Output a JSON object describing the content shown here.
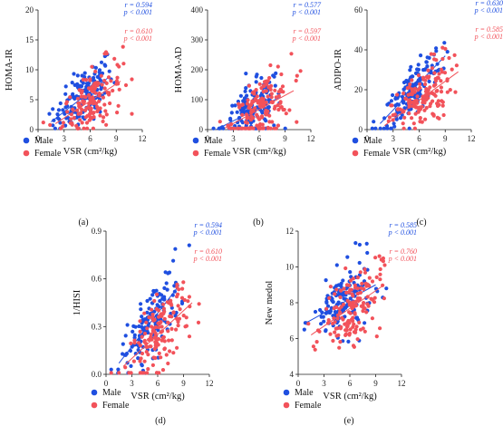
{
  "colors": {
    "male": "#1f4fe0",
    "female": "#f2525a"
  },
  "chart_data": [
    {
      "type": "scatter",
      "panel_label": "(a)",
      "xlabel": "VSR (cm²/kg)",
      "ylabel": "HOMA-IR",
      "xlim": [
        0,
        12
      ],
      "ylim": [
        0,
        20
      ],
      "xticks": [
        "0",
        "3",
        "6",
        "9",
        "12"
      ],
      "yticks": [
        "0",
        "5",
        "10",
        "15",
        "20"
      ],
      "series": [
        {
          "name": "Male",
          "r": "r = 0.594",
          "p": "p < 0.001",
          "trend": [
            [
              1.5,
              1.3
            ],
            [
              8.0,
              8.6
            ]
          ]
        },
        {
          "name": "Female",
          "r": "r = 0.610",
          "p": "p < 0.001",
          "trend": [
            [
              2.0,
              1.0
            ],
            [
              9.5,
              8.1
            ]
          ]
        }
      ]
    },
    {
      "type": "scatter",
      "panel_label": "(b)",
      "xlabel": "VSR (cm²/kg)",
      "ylabel": "HOMA-AD",
      "xlim": [
        0,
        12
      ],
      "ylim": [
        0,
        400
      ],
      "xticks": [
        "0",
        "3",
        "6",
        "9",
        "12"
      ],
      "yticks": [
        "0",
        "100",
        "200",
        "300",
        "400"
      ],
      "series": [
        {
          "name": "Male",
          "r": "r = 0.577",
          "p": "p < 0.001",
          "trend": [
            [
              1.0,
              0
            ],
            [
              8.5,
              110
            ]
          ]
        },
        {
          "name": "Female",
          "r": "r = 0.597",
          "p": "p < 0.001",
          "trend": [
            [
              2.0,
              5
            ],
            [
              10.0,
              130
            ]
          ]
        }
      ]
    },
    {
      "type": "scatter",
      "panel_label": "(c)",
      "xlabel": "VSR (cm²/kg)",
      "ylabel": "ADIPO-IR",
      "xlim": [
        0,
        12
      ],
      "ylim": [
        0,
        60
      ],
      "xticks": [
        "0",
        "3",
        "6",
        "9",
        "12"
      ],
      "yticks": [
        "0",
        "20",
        "40",
        "60"
      ],
      "series": [
        {
          "name": "Male",
          "r": "r = 0.630",
          "p": "p < 0.001",
          "trend": [
            [
              1.5,
              3
            ],
            [
              9.0,
              37
            ]
          ]
        },
        {
          "name": "Female",
          "r": "r = 0.585",
          "p": "p < 0.001",
          "trend": [
            [
              2.0,
              2
            ],
            [
              10.5,
              29
            ]
          ]
        }
      ]
    },
    {
      "type": "scatter",
      "panel_label": "(d)",
      "xlabel": "VSR (cm²/kg)",
      "ylabel": "1/HISI",
      "xlim": [
        0,
        12
      ],
      "ylim": [
        0,
        0.9
      ],
      "xticks": [
        "0",
        "3",
        "6",
        "9",
        "12"
      ],
      "yticks": [
        "0.0",
        "0.3",
        "0.6",
        "0.9"
      ],
      "series": [
        {
          "name": "Male",
          "r": "r = 0.594",
          "p": "p < 0.001",
          "trend": [
            [
              1.5,
              0.07
            ],
            [
              8.5,
              0.56
            ]
          ]
        },
        {
          "name": "Female",
          "r": "r = 0.610",
          "p": "p < 0.001",
          "trend": [
            [
              2.0,
              0.05
            ],
            [
              10.0,
              0.45
            ]
          ]
        }
      ]
    },
    {
      "type": "scatter",
      "panel_label": "(e)",
      "xlabel": "VSR (cm²/kg)",
      "ylabel": "New medol",
      "xlim": [
        0,
        12
      ],
      "ylim": [
        4,
        12
      ],
      "xticks": [
        "0",
        "3",
        "6",
        "9",
        "12"
      ],
      "yticks": [
        "4",
        "6",
        "8",
        "10",
        "12"
      ],
      "series": [
        {
          "name": "Male",
          "r": "r = 0.585",
          "p": "p < 0.001",
          "trend": [
            [
              1.0,
              6.9
            ],
            [
              9.0,
              9.0
            ]
          ]
        },
        {
          "name": "Female",
          "r": "r = 0.760",
          "p": "p < 0.001",
          "trend": [
            [
              1.5,
              6.2
            ],
            [
              10.0,
              9.0
            ]
          ]
        }
      ]
    }
  ]
}
